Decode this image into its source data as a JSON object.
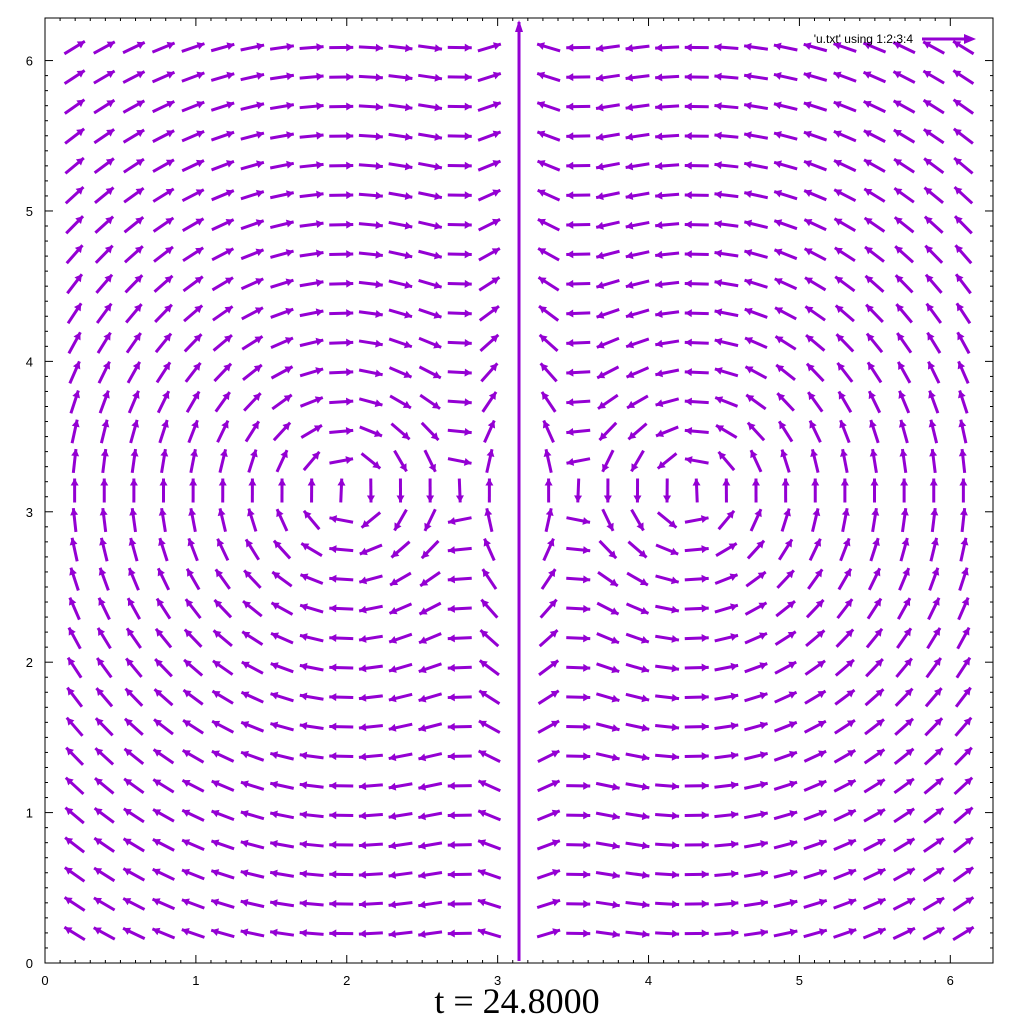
{
  "chart_data": {
    "type": "vector_field",
    "legend": {
      "label": "'u.txt' using 1:2:3:4",
      "position": "top-right",
      "color": "#9400d3"
    },
    "time_label": "t = 24.8000",
    "x_range": [
      0,
      6.283
    ],
    "y_range": [
      0,
      6.283
    ],
    "x_ticks": [
      "0",
      "1",
      "2",
      "3",
      "4",
      "5",
      "6"
    ],
    "y_ticks": [
      "0",
      "1",
      "2",
      "3",
      "4",
      "5",
      "6"
    ],
    "grid": false,
    "arrow_color": "#9400d3",
    "field": {
      "grid_size": 32,
      "vortex_centres": [
        {
          "x": 2.0,
          "y": 3.14,
          "direction": "clockwise"
        },
        {
          "x": 4.28,
          "y": 3.14,
          "direction": "counterclockwise"
        }
      ],
      "central_jet_x": 3.1416,
      "mirror_symmetric_about": 3.1416
    }
  }
}
